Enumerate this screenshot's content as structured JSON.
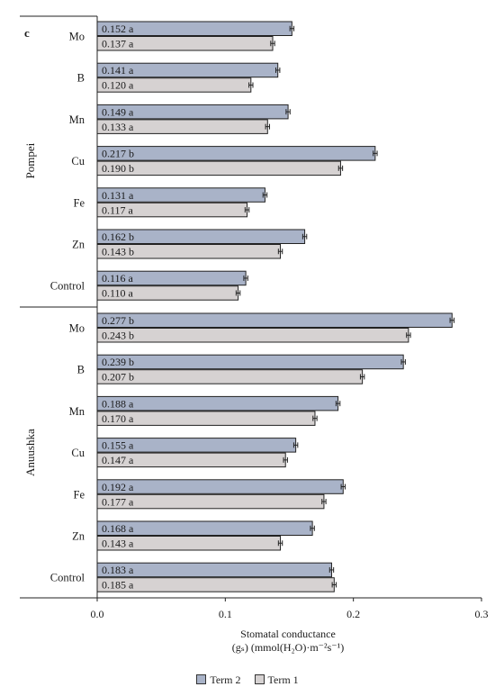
{
  "chart_data": {
    "type": "bar",
    "orientation": "horizontal",
    "panel_label": "c",
    "xlabel_line1": "Stomatal conductance",
    "xlabel_line2": "(gₛ) (mmol(H₂O)·m⁻²s⁻¹)",
    "xlim": [
      0,
      0.3
    ],
    "xticks": [
      "0.0",
      "0.1",
      "0.2",
      "0.3"
    ],
    "grid": false,
    "legend_position": "bottom-center",
    "series": [
      {
        "name": "Term 2",
        "color": "#a9b3c8"
      },
      {
        "name": "Term 1",
        "color": "#d6d2d2"
      }
    ],
    "groups": [
      {
        "name": "Pompei",
        "categories": [
          {
            "label": "Mo",
            "term2": 0.152,
            "term1": 0.137,
            "term2_label": "0.152 a",
            "term1_label": "0.137 a"
          },
          {
            "label": "B",
            "term2": 0.141,
            "term1": 0.12,
            "term2_label": "0.141 a",
            "term1_label": "0.120 a"
          },
          {
            "label": "Mn",
            "term2": 0.149,
            "term1": 0.133,
            "term2_label": "0.149 a",
            "term1_label": "0.133 a"
          },
          {
            "label": "Cu",
            "term2": 0.217,
            "term1": 0.19,
            "term2_label": "0.217 b",
            "term1_label": "0.190 b"
          },
          {
            "label": "Fe",
            "term2": 0.131,
            "term1": 0.117,
            "term2_label": "0.131 a",
            "term1_label": "0.117 a"
          },
          {
            "label": "Zn",
            "term2": 0.162,
            "term1": 0.143,
            "term2_label": "0.162 b",
            "term1_label": "0.143 b"
          },
          {
            "label": "Control",
            "term2": 0.116,
            "term1": 0.11,
            "term2_label": "0.116 a",
            "term1_label": "0.110 a"
          }
        ]
      },
      {
        "name": "Anuushka",
        "categories": [
          {
            "label": "Mo",
            "term2": 0.277,
            "term1": 0.243,
            "term2_label": "0.277 b",
            "term1_label": "0.243 b"
          },
          {
            "label": "B",
            "term2": 0.239,
            "term1": 0.207,
            "term2_label": "0.239 b",
            "term1_label": "0.207 b"
          },
          {
            "label": "Mn",
            "term2": 0.188,
            "term1": 0.17,
            "term2_label": "0.188 a",
            "term1_label": "0.170 a"
          },
          {
            "label": "Cu",
            "term2": 0.155,
            "term1": 0.147,
            "term2_label": "0.155 a",
            "term1_label": "0.147 a"
          },
          {
            "label": "Fe",
            "term2": 0.192,
            "term1": 0.177,
            "term2_label": "0.192 a",
            "term1_label": "0.177 a"
          },
          {
            "label": "Zn",
            "term2": 0.168,
            "term1": 0.143,
            "term2_label": "0.168 a",
            "term1_label": "0.143 a"
          },
          {
            "label": "Control",
            "term2": 0.183,
            "term1": 0.185,
            "term2_label": "0.183 a",
            "term1_label": "0.185 a"
          }
        ]
      }
    ]
  }
}
